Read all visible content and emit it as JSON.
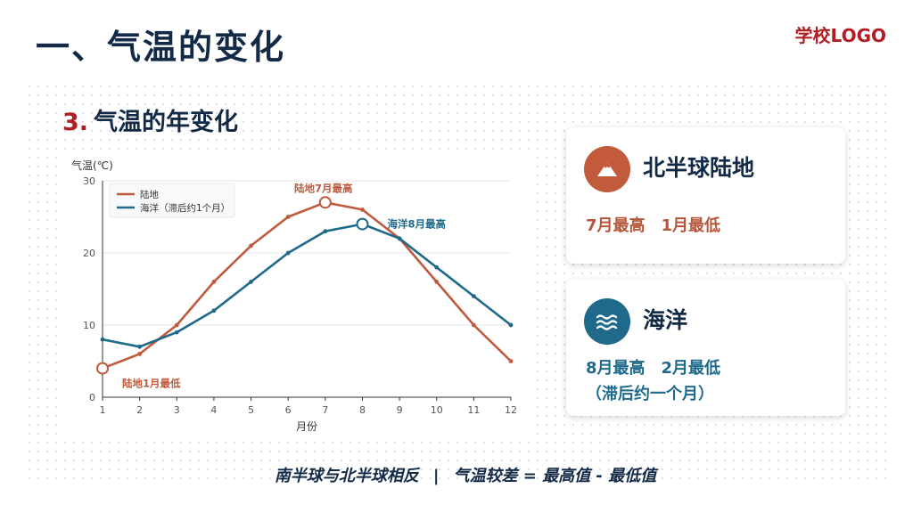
{
  "header": {
    "title": "一、气温的变化",
    "logo": "学校LOGO"
  },
  "section": {
    "number": "3.",
    "title": "气温的年变化"
  },
  "chart_data": {
    "type": "line",
    "ylabel": "气温(℃)",
    "xlabel": "月份",
    "x": [
      1,
      2,
      3,
      4,
      5,
      6,
      7,
      8,
      9,
      10,
      11,
      12
    ],
    "ylim": [
      0,
      30
    ],
    "yticks": [
      0,
      10,
      20,
      30
    ],
    "grid": "horizontal",
    "legend": "top-left",
    "series": [
      {
        "name": "陆地",
        "color": "#bf5b3d",
        "values": [
          4,
          6,
          10,
          16,
          21,
          25,
          27,
          26,
          22,
          16,
          10,
          5
        ]
      },
      {
        "name": "海洋（滞后约1个月）",
        "color": "#1f6a8a",
        "values": [
          8,
          7,
          9,
          12,
          16,
          20,
          23,
          24,
          22,
          18,
          14,
          10
        ]
      }
    ],
    "annotations": [
      {
        "text": "陆地7月最高",
        "series": 0,
        "x": 7,
        "color": "#bf5b3d"
      },
      {
        "text": "陆地1月最低",
        "series": 0,
        "x": 1,
        "color": "#bf5b3d"
      },
      {
        "text": "海洋8月最高",
        "series": 1,
        "x": 8,
        "color": "#1f6a8a"
      }
    ]
  },
  "cards": {
    "land": {
      "title": "北半球陆地",
      "icon": "mountain-icon",
      "max": "7月最高",
      "min": "1月最低"
    },
    "ocean": {
      "title": "海洋",
      "icon": "waves-icon",
      "max": "8月最高",
      "min": "2月最低",
      "note": "（滞后约一个月）"
    }
  },
  "footer": {
    "left": "南半球与北半球相反",
    "separator": "|",
    "right": "气温较差 = 最高值 - 最低值"
  }
}
